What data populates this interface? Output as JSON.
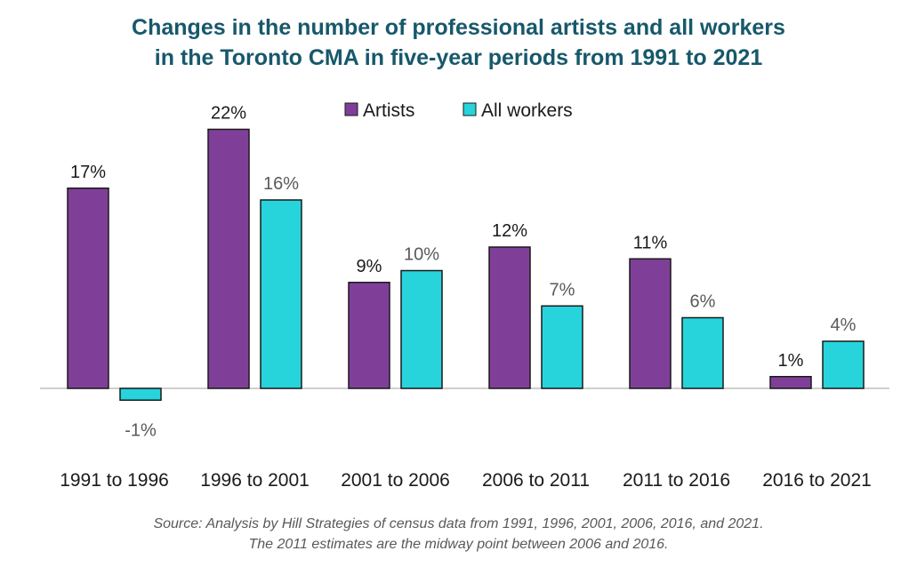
{
  "chart_data": {
    "type": "bar",
    "title": [
      "Changes in the number of professional artists and all workers",
      "in the Toronto CMA in five-year periods from 1991 to 2021"
    ],
    "categories": [
      "1991 to 1996",
      "1996 to 2001",
      "2001 to 2006",
      "2006 to 2011",
      "2011 to 2016",
      "2016 to 2021"
    ],
    "series": [
      {
        "name": "Artists",
        "values": [
          17,
          22,
          9,
          12,
          11,
          1
        ],
        "labels": [
          "17%",
          "22%",
          "9%",
          "12%",
          "11%",
          "1%"
        ],
        "color": "#7f3f98"
      },
      {
        "name": "All workers",
        "values": [
          -1,
          16,
          10,
          7,
          6,
          4
        ],
        "labels": [
          "-1%",
          "16%",
          "10%",
          "7%",
          "6%",
          "4%"
        ],
        "color": "#27d4dc"
      }
    ],
    "ylim": [
      -1,
      22
    ],
    "grid": false,
    "legend": "top-center",
    "colors": {
      "title": "#17586b",
      "artist_label": "#1a1a1a",
      "workers_label": "#595959",
      "source": "#595959",
      "axis": "#bfbfbf"
    }
  },
  "source": [
    "Source: Analysis by Hill Strategies of census data from 1991, 1996, 2001, 2006, 2016, and 2021.",
    "The 2011 estimates are the midway point between 2006 and 2016."
  ]
}
